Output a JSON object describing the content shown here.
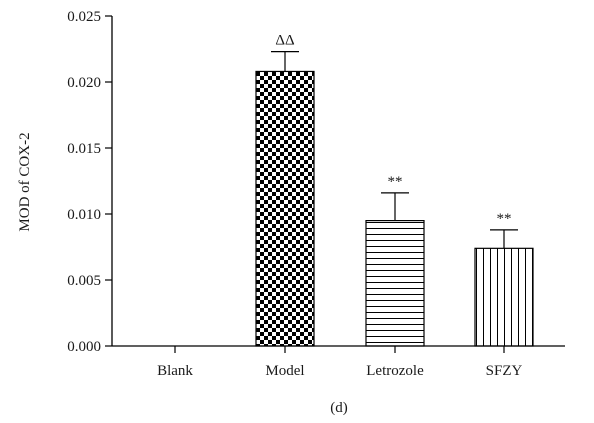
{
  "chart_data": {
    "type": "bar",
    "ylabel": "MOD of COX-2",
    "ylim": [
      0,
      0.025
    ],
    "yticks": [
      "0.000",
      "0.005",
      "0.010",
      "0.015",
      "0.020",
      "0.025"
    ],
    "categories": [
      "Blank",
      "Model",
      "Letrozole",
      "SFZY"
    ],
    "values": [
      0.0,
      0.0208,
      0.0095,
      0.0074
    ],
    "errors": [
      0.0,
      0.0015,
      0.0021,
      0.0014
    ],
    "patterns": [
      "none",
      "checkerboard",
      "horizontal-lines",
      "vertical-lines"
    ],
    "significance": [
      "",
      "ΔΔ",
      "**",
      "**"
    ],
    "panel_label": "(d)",
    "grid": false
  }
}
